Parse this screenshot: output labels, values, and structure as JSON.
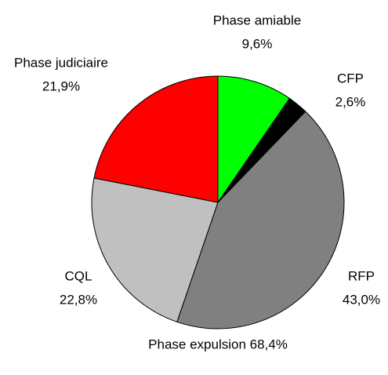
{
  "chart_data": {
    "type": "pie",
    "categories": [
      "Phase amiable",
      "CFP",
      "RFP",
      "CQL",
      "Phase judiciaire"
    ],
    "values": [
      9.6,
      2.6,
      43.0,
      22.8,
      21.9
    ],
    "value_labels": [
      "9,6%",
      "2,6%",
      "43,0%",
      "22,8%",
      "21,9%"
    ],
    "colors": [
      "#00ff00",
      "#000000",
      "#808080",
      "#c0c0c0",
      "#ff0000"
    ],
    "annotations": [
      "Phase expulsion 68,4%"
    ]
  }
}
